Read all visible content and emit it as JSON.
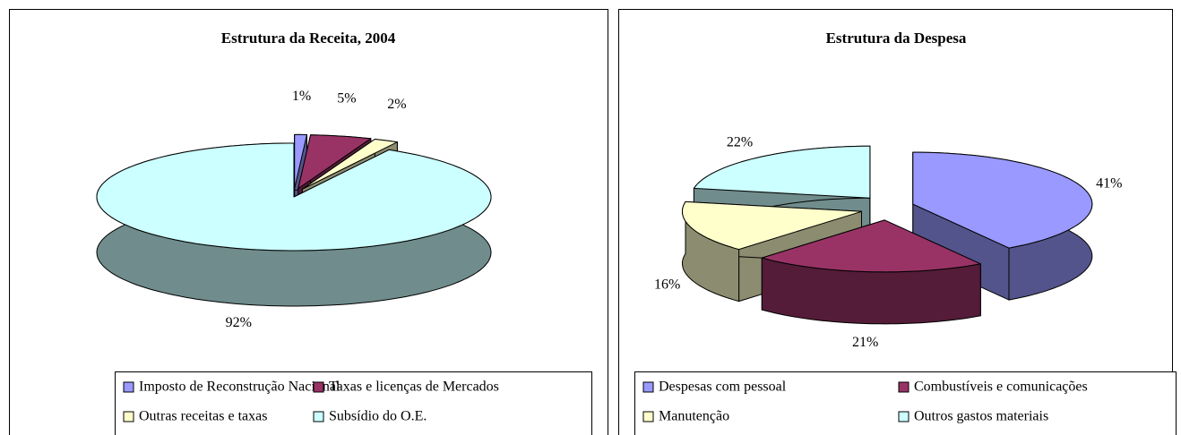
{
  "chart_data": [
    {
      "type": "pie",
      "title": "Estrutura da Receita, 2004",
      "categories": [
        "Imposto de Reconstrução Nacional",
        "Taxas e licenças de Mercados",
        "Outras receitas e taxas",
        "Subsídio do O.E."
      ],
      "values": [
        1,
        5,
        2,
        92
      ],
      "value_labels": [
        "1%",
        "5%",
        "2%",
        "92%"
      ],
      "colors": [
        "#9999ff",
        "#993366",
        "#ffffcc",
        "#ccffff"
      ]
    },
    {
      "type": "pie",
      "title": "Estrutura da Despesa",
      "categories": [
        "Despesas com pessoal",
        "Combustíveis e comunicações",
        "Manutenção",
        "Outros gastos materiais"
      ],
      "values": [
        41,
        21,
        16,
        22
      ],
      "value_labels": [
        "41%",
        "21%",
        "16%",
        "22%"
      ],
      "colors": [
        "#9999ff",
        "#993366",
        "#ffffcc",
        "#ccffff"
      ]
    }
  ]
}
